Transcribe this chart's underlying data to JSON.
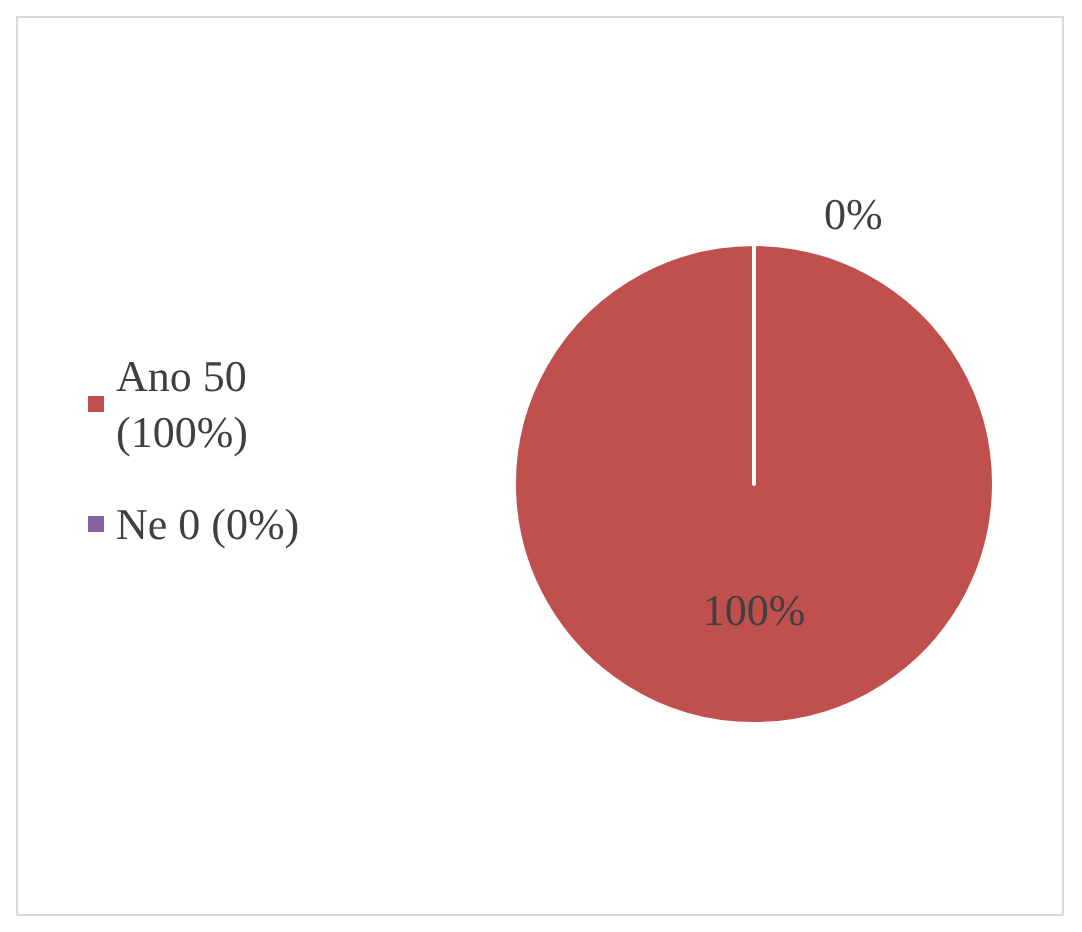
{
  "chart_data": {
    "type": "pie",
    "categories": [
      "Ano 50 (100%)",
      "Ne 0 (0%)"
    ],
    "values": [
      100,
      0
    ],
    "colors": [
      "#c0504d",
      "#8064a2"
    ],
    "value_labels": [
      "100%",
      "0%"
    ],
    "legend": "left"
  }
}
